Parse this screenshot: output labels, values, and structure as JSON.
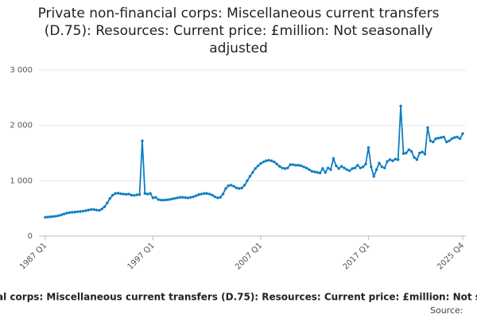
{
  "chart_data": {
    "type": "line",
    "title": "Private non-financial corps: Miscellaneous current transfers (D.75): Resources: Current price: £million: Not seasonally adjusted",
    "source": "Source:",
    "categories": [
      "1987 Q1",
      null,
      null,
      null,
      null,
      null,
      null,
      null,
      null,
      null,
      null,
      null,
      null,
      null,
      null,
      null,
      null,
      null,
      null,
      null,
      null,
      null,
      null,
      null,
      null,
      null,
      null,
      null,
      null,
      null,
      null,
      null,
      null,
      null,
      null,
      null,
      null,
      null,
      null,
      null,
      "1997 Q1",
      null,
      null,
      null,
      null,
      null,
      null,
      null,
      null,
      null,
      null,
      null,
      null,
      null,
      null,
      null,
      null,
      null,
      null,
      null,
      null,
      null,
      null,
      null,
      null,
      null,
      null,
      null,
      null,
      null,
      null,
      null,
      null,
      null,
      null,
      null,
      null,
      null,
      null,
      null,
      "2007 Q1",
      null,
      null,
      null,
      null,
      null,
      null,
      null,
      null,
      null,
      null,
      null,
      null,
      null,
      null,
      null,
      null,
      null,
      null,
      null,
      null,
      null,
      null,
      null,
      null,
      null,
      null,
      null,
      null,
      null,
      null,
      null,
      null,
      null,
      null,
      null,
      null,
      null,
      null,
      null,
      "2017 Q1",
      null,
      null,
      null,
      null,
      null,
      null,
      null,
      null,
      null,
      null,
      null,
      null,
      null,
      null,
      null,
      null,
      null,
      null,
      null,
      null,
      null,
      null,
      null,
      null,
      null,
      null,
      null,
      null,
      null,
      null,
      null,
      null,
      null,
      null,
      "2025 Q4"
    ],
    "series": [
      {
        "color": "#0f7ec1",
        "values": [
          340,
          345,
          350,
          355,
          360,
          370,
          385,
          400,
          415,
          425,
          430,
          435,
          440,
          445,
          450,
          460,
          470,
          480,
          480,
          470,
          465,
          490,
          530,
          600,
          680,
          740,
          770,
          775,
          765,
          760,
          755,
          760,
          740,
          735,
          745,
          750,
          1720,
          770,
          760,
          770,
          690,
          700,
          660,
          650,
          650,
          655,
          660,
          670,
          680,
          690,
          700,
          700,
          695,
          690,
          700,
          710,
          730,
          750,
          760,
          770,
          770,
          760,
          740,
          710,
          690,
          700,
          760,
          860,
          910,
          920,
          900,
          870,
          860,
          870,
          920,
          1000,
          1080,
          1150,
          1220,
          1270,
          1310,
          1340,
          1360,
          1370,
          1360,
          1340,
          1300,
          1260,
          1230,
          1220,
          1230,
          1290,
          1290,
          1280,
          1280,
          1270,
          1250,
          1230,
          1200,
          1170,
          1160,
          1150,
          1140,
          1220,
          1150,
          1230,
          1200,
          1400,
          1270,
          1220,
          1260,
          1230,
          1200,
          1180,
          1220,
          1230,
          1280,
          1230,
          1250,
          1300,
          1600,
          1250,
          1080,
          1200,
          1320,
          1250,
          1230,
          1350,
          1380,
          1360,
          1390,
          1380,
          2350,
          1490,
          1500,
          1560,
          1530,
          1420,
          1380,
          1500,
          1520,
          1480,
          1960,
          1720,
          1700,
          1760,
          1770,
          1780,
          1790,
          1700,
          1720,
          1760,
          1780,
          1790,
          1760,
          1850
        ]
      }
    ],
    "ylim": [
      0,
      3000
    ],
    "yticks": [
      0,
      {
        "value": 1000,
        "label": "1 000"
      },
      {
        "value": 2000,
        "label": "2 000"
      },
      {
        "value": 3000,
        "label": "3 000"
      }
    ],
    "grid": true
  }
}
